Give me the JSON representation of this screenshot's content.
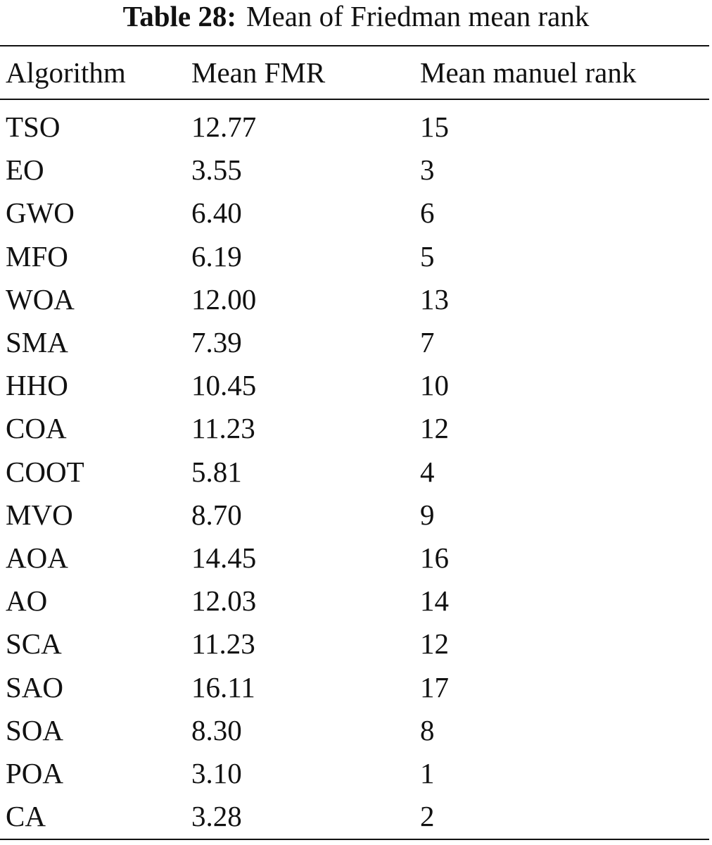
{
  "caption": {
    "label": "Table 28:",
    "text": "Mean of Friedman mean rank"
  },
  "table": {
    "header": [
      "Algorithm",
      "Mean FMR",
      "Mean manuel rank"
    ],
    "rows": [
      [
        "TSO",
        "12.77",
        "15"
      ],
      [
        "EO",
        "3.55",
        "3"
      ],
      [
        "GWO",
        "6.40",
        "6"
      ],
      [
        "MFO",
        "6.19",
        "5"
      ],
      [
        "WOA",
        "12.00",
        "13"
      ],
      [
        "SMA",
        "7.39",
        "7"
      ],
      [
        "HHO",
        "10.45",
        "10"
      ],
      [
        "COA",
        "11.23",
        "12"
      ],
      [
        "COOT",
        "5.81",
        "4"
      ],
      [
        "MVO",
        "8.70",
        "9"
      ],
      [
        "AOA",
        "14.45",
        "16"
      ],
      [
        "AO",
        "12.03",
        "14"
      ],
      [
        "SCA",
        "11.23",
        "12"
      ],
      [
        "SAO",
        "16.11",
        "17"
      ],
      [
        "SOA",
        "8.30",
        "8"
      ],
      [
        "POA",
        "3.10",
        "1"
      ],
      [
        "CA",
        "3.28",
        "2"
      ]
    ]
  }
}
